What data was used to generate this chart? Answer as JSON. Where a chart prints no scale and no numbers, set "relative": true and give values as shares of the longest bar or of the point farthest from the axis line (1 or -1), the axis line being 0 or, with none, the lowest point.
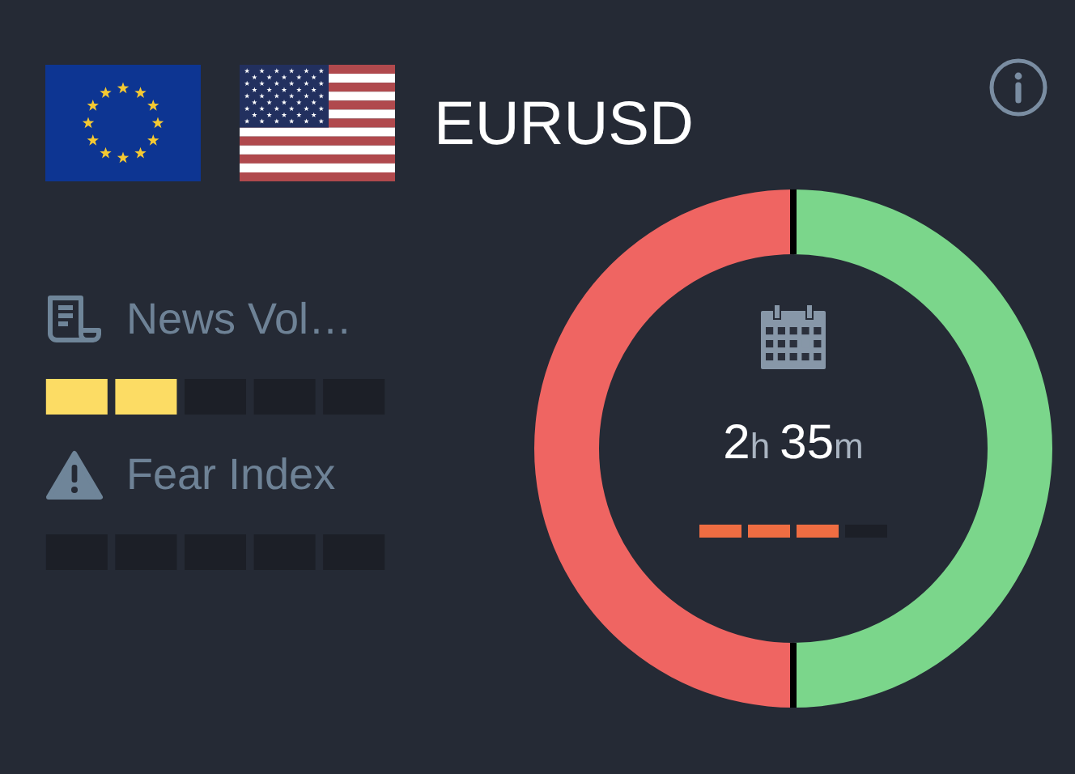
{
  "chart_data": [
    {
      "type": "donut",
      "title": "EURUSD",
      "categories": [
        null,
        null
      ],
      "values": [
        50,
        50
      ],
      "colors": [
        "#7bd68b",
        "#ef6562"
      ],
      "annotations": [
        "2h 35m"
      ]
    },
    {
      "type": "bar",
      "title": "News Vol…",
      "relative": true,
      "categories": [
        null,
        null,
        null,
        null,
        null
      ],
      "values": [
        1,
        1,
        1,
        1,
        1
      ],
      "colors": [
        "#fcdc64",
        "#fcdc64",
        "#1c1f27",
        "#1c1f27",
        "#1c1f27"
      ]
    },
    {
      "type": "bar",
      "title": "Fear Index",
      "relative": true,
      "categories": [
        null,
        null,
        null,
        null,
        null
      ],
      "values": [
        1,
        1,
        1,
        1,
        1
      ],
      "colors": [
        "#1c1f27",
        "#1c1f27",
        "#1c1f27",
        "#1c1f27",
        "#1c1f27"
      ]
    },
    {
      "type": "bar",
      "relative": true,
      "categories": [
        null,
        null,
        null,
        null
      ],
      "values": [
        1,
        1,
        1,
        1
      ],
      "colors": [
        "#ef6d42",
        "#ef6d42",
        "#ef6d42",
        "#1c1f27"
      ]
    }
  ]
}
